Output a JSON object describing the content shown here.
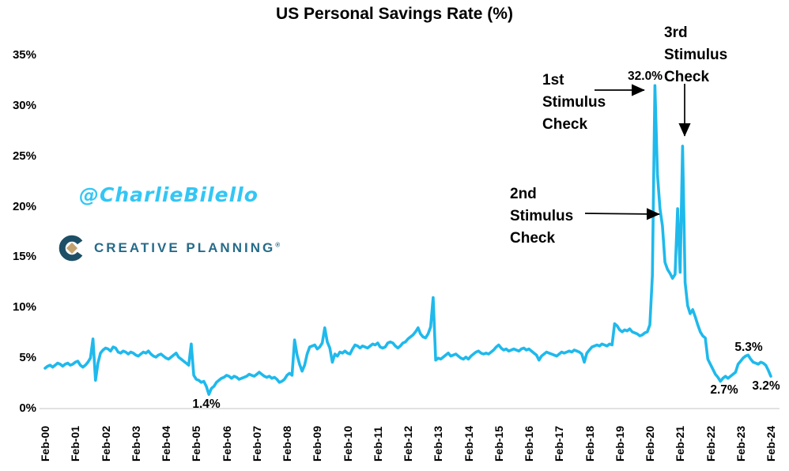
{
  "title": "US Personal Savings Rate (%)",
  "watermark": {
    "handle": "@CharlieBilello",
    "brand": "CREATIVE PLANNING",
    "brand_mark": "®"
  },
  "colors": {
    "line": "#1FB9EC",
    "handle_text": "#33C6F5",
    "brand_navy": "#1D4F67",
    "brand_text": "#266B89",
    "brand_gold": "#C2A36F",
    "axis_text": "#000000",
    "baseline_gray": "#D9D9D9",
    "annotation_black": "#000000"
  },
  "chart_data": {
    "type": "line",
    "title": "US Personal Savings Rate (%)",
    "frequency": "monthly",
    "x_start": "Feb-2000",
    "x_end": "Feb-2024",
    "ylim": [
      0,
      35
    ],
    "grid": false,
    "legend": "none",
    "y_tick_labels": [
      "35%",
      "30%",
      "25%",
      "20%",
      "15%",
      "10%",
      "5%",
      "0%"
    ],
    "y_tick_values": [
      35,
      30,
      25,
      20,
      15,
      10,
      5,
      0
    ],
    "x_tick_labels": [
      "Feb-00",
      "Feb-01",
      "Feb-02",
      "Feb-03",
      "Feb-04",
      "Feb-05",
      "Feb-06",
      "Feb-07",
      "Feb-08",
      "Feb-09",
      "Feb-10",
      "Feb-11",
      "Feb-12",
      "Feb-13",
      "Feb-14",
      "Feb-15",
      "Feb-16",
      "Feb-17",
      "Feb-18",
      "Feb-19",
      "Feb-20",
      "Feb-21",
      "Feb-22",
      "Feb-23",
      "Feb-24"
    ],
    "series": [
      {
        "name": "US Personal Savings Rate (%)",
        "values": [
          4.0,
          4.2,
          4.3,
          4.1,
          4.3,
          4.5,
          4.4,
          4.2,
          4.4,
          4.5,
          4.3,
          4.4,
          4.6,
          4.7,
          4.3,
          4.1,
          4.3,
          4.6,
          5.0,
          6.9,
          2.8,
          4.5,
          5.5,
          5.8,
          6.0,
          5.9,
          5.7,
          6.1,
          6.0,
          5.6,
          5.5,
          5.7,
          5.6,
          5.4,
          5.6,
          5.5,
          5.3,
          5.2,
          5.4,
          5.6,
          5.5,
          5.7,
          5.4,
          5.2,
          5.1,
          5.3,
          5.4,
          5.2,
          5.0,
          4.9,
          5.1,
          5.3,
          5.5,
          5.1,
          4.9,
          4.7,
          4.5,
          4.3,
          6.4,
          3.3,
          2.9,
          2.8,
          2.6,
          2.7,
          2.2,
          1.4,
          2.0,
          2.2,
          2.6,
          2.8,
          3.0,
          3.1,
          3.3,
          3.2,
          3.0,
          3.2,
          3.1,
          2.9,
          3.0,
          3.1,
          3.2,
          3.4,
          3.3,
          3.2,
          3.4,
          3.6,
          3.4,
          3.2,
          3.1,
          3.2,
          3.0,
          3.1,
          2.9,
          2.6,
          2.7,
          2.9,
          3.3,
          3.5,
          3.3,
          6.8,
          5.3,
          4.4,
          3.7,
          4.3,
          5.4,
          6.1,
          6.2,
          6.3,
          5.9,
          6.1,
          6.5,
          8.0,
          6.6,
          6.0,
          4.6,
          5.4,
          5.2,
          5.6,
          5.5,
          5.7,
          5.5,
          5.4,
          5.9,
          6.3,
          6.2,
          6.0,
          6.2,
          6.1,
          6.0,
          6.2,
          6.4,
          6.3,
          6.5,
          6.1,
          6.0,
          6.1,
          6.5,
          6.6,
          6.5,
          6.2,
          6.0,
          6.2,
          6.5,
          6.6,
          6.9,
          7.1,
          7.3,
          7.6,
          8.0,
          7.4,
          7.1,
          7.0,
          7.4,
          8.1,
          11.0,
          4.8,
          5.0,
          4.9,
          5.1,
          5.3,
          5.5,
          5.2,
          5.3,
          5.4,
          5.2,
          5.0,
          4.9,
          5.1,
          4.9,
          5.2,
          5.4,
          5.6,
          5.7,
          5.5,
          5.4,
          5.5,
          5.4,
          5.6,
          5.8,
          6.1,
          6.3,
          6.0,
          5.8,
          5.9,
          5.7,
          5.8,
          5.9,
          5.8,
          5.7,
          5.9,
          6.0,
          5.8,
          5.9,
          5.7,
          5.5,
          5.3,
          4.8,
          5.2,
          5.4,
          5.6,
          5.5,
          5.4,
          5.3,
          5.2,
          5.4,
          5.6,
          5.5,
          5.6,
          5.7,
          5.6,
          5.8,
          5.7,
          5.6,
          5.4,
          4.6,
          5.5,
          5.8,
          6.1,
          6.2,
          6.3,
          6.2,
          6.4,
          6.3,
          6.2,
          6.4,
          6.3,
          8.4,
          8.2,
          7.8,
          7.6,
          7.8,
          7.7,
          7.9,
          7.6,
          7.5,
          7.4,
          7.2,
          7.3,
          7.5,
          7.6,
          8.3,
          13.2,
          32.0,
          23.2,
          19.8,
          18.1,
          14.5,
          13.8,
          13.4,
          12.9,
          13.3,
          19.8,
          13.5,
          26.0,
          12.5,
          10.2,
          9.4,
          9.8,
          9.1,
          8.3,
          7.6,
          7.2,
          7.0,
          4.9,
          4.4,
          3.9,
          3.4,
          3.1,
          2.7,
          3.0,
          3.2,
          3.0,
          3.2,
          3.4,
          3.6,
          4.4,
          4.7,
          5.0,
          5.2,
          5.3,
          4.9,
          4.6,
          4.5,
          4.4,
          4.6,
          4.5,
          4.3,
          3.8,
          3.2
        ]
      }
    ],
    "annotations": {
      "peak_2020": {
        "text": "32.0%",
        "month": "Apr-2020",
        "value": 32.0
      },
      "stimulus_1": {
        "text": "1st Stimulus Check",
        "line1": "1st",
        "line2": "Stimulus",
        "line3": "Check",
        "points_to": "Apr-2020 peak (32.0%)"
      },
      "stimulus_2": {
        "text": "2nd Stimulus Check",
        "line1": "2nd",
        "line2": "Stimulus",
        "line3": "Check",
        "points_to": "Jan-2021 spike (~19.8%)"
      },
      "stimulus_3": {
        "text": "3rd Stimulus Check",
        "line1": "3rd",
        "line2": "Stimulus",
        "line3": "Check",
        "points_to": "Mar-2021 peak (26%)"
      },
      "low_2005": {
        "text": "1.4%",
        "month": "Jul-2005",
        "value": 1.4
      },
      "low_2022": {
        "text": "2.7%",
        "month": "Jun-2022",
        "value": 2.7
      },
      "peak_2023": {
        "text": "5.3%",
        "month": "May-2023",
        "value": 5.3
      },
      "last_value": {
        "text": "3.2%",
        "month": "Feb-2024",
        "value": 3.2
      }
    }
  }
}
